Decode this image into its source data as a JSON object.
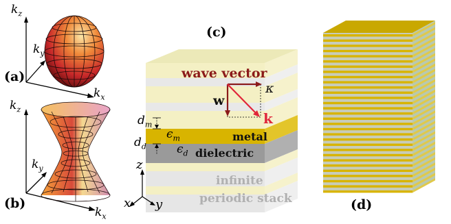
{
  "panels": {
    "a": "(a)",
    "b": "(b)",
    "c": "(c)",
    "d": "(d)"
  },
  "axes": {
    "a": {
      "kz": "k",
      "kz_sub": "z",
      "ky": "k",
      "ky_sub": "y",
      "kx": "k",
      "kx_sub": "x"
    },
    "b": {
      "kz": "k",
      "kz_sub": "z",
      "ky": "k",
      "ky_sub": "y",
      "kx": "k",
      "kx_sub": "x"
    }
  },
  "stack": {
    "wave_vector": "wave vector",
    "w": "w",
    "kappa": "κ",
    "k": "k",
    "metal": "metal",
    "dielectric": "dielectric",
    "infinite": "infinite",
    "periodic_stack": "periodic stack",
    "dm": "d",
    "dm_sub": "m",
    "dd": "d",
    "dd_sub": "d",
    "eps_m": "ϵ",
    "eps_m_sub": "m",
    "eps_d": "ϵ",
    "eps_d_sub": "d",
    "coord_z": "z",
    "coord_x": "x",
    "coord_y": "y"
  },
  "colors": {
    "metal": "#d8b400",
    "metal_pale": "#f4efc0",
    "dielectric": "#9a9a9a",
    "dielectric_pale": "#e6e6e6",
    "arrow_dark": "#8b1a1a",
    "arrow_red": "#e0263a"
  }
}
